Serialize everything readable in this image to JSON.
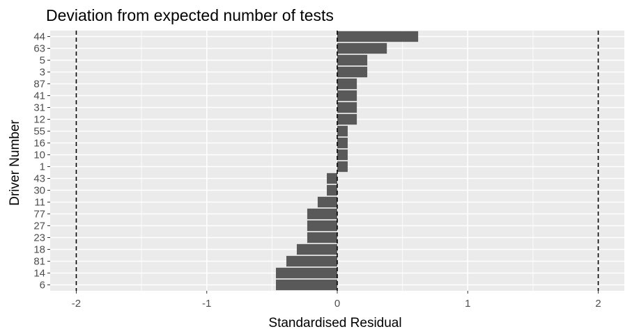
{
  "chart_data": {
    "type": "bar",
    "orientation": "horizontal",
    "title": "Deviation from expected number of tests",
    "xlabel": "Standardised Residual",
    "ylabel": "Driver Number",
    "categories": [
      "44",
      "63",
      "5",
      "3",
      "87",
      "41",
      "31",
      "12",
      "55",
      "16",
      "10",
      "1",
      "43",
      "30",
      "11",
      "77",
      "27",
      "23",
      "18",
      "81",
      "14",
      "6"
    ],
    "values": [
      0.62,
      0.38,
      0.23,
      0.23,
      0.15,
      0.15,
      0.15,
      0.15,
      0.08,
      0.08,
      0.08,
      0.08,
      -0.08,
      -0.08,
      -0.15,
      -0.23,
      -0.23,
      -0.23,
      -0.31,
      -0.39,
      -0.47,
      -0.47
    ],
    "xlim": [
      -2.2,
      2.2
    ],
    "x_ticks": [
      -2,
      -1,
      0,
      1,
      2
    ],
    "x_tick_labels": [
      "-2",
      "-1",
      "0",
      "1",
      "2"
    ],
    "reference_lines": [
      -2,
      0,
      2
    ],
    "reference_line_style": "dashed",
    "bar_color": "#595959",
    "panel_background": "#ebebeb",
    "grid_color": "#ffffff",
    "grid": true,
    "legend": "none"
  }
}
